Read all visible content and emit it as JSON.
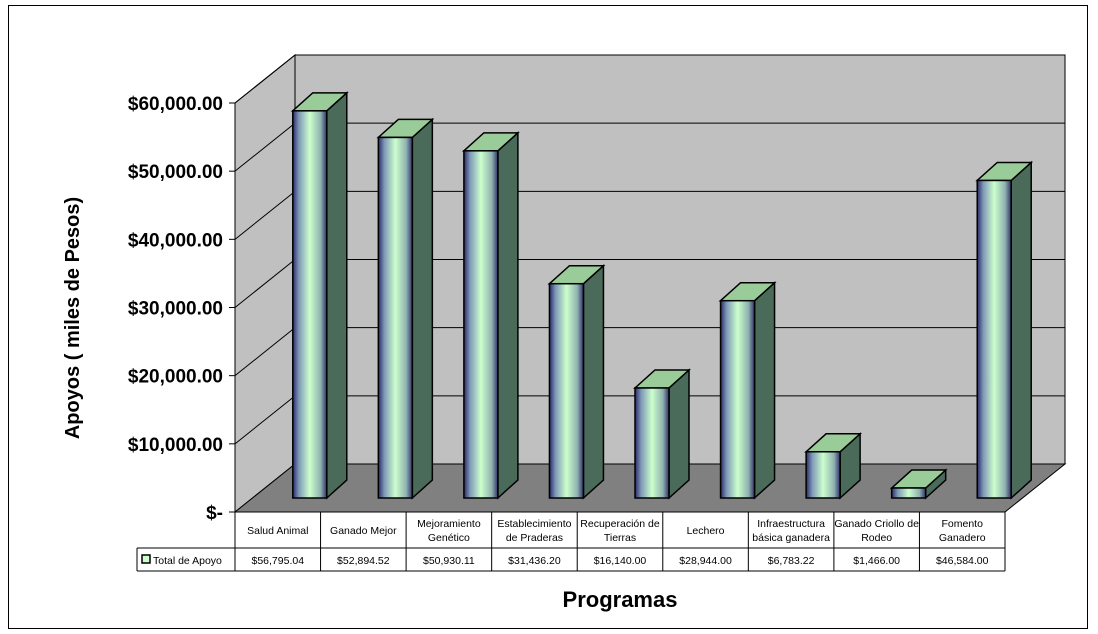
{
  "chart_data": {
    "type": "bar",
    "ylabel": "Apoyos ( miles de Pesos)",
    "xlabel": "Programas",
    "ylim": [
      0,
      60000
    ],
    "y_ticks": [
      {
        "value": 0,
        "label": "$-"
      },
      {
        "value": 10000,
        "label": "$10,000.00"
      },
      {
        "value": 20000,
        "label": "$20,000.00"
      },
      {
        "value": 30000,
        "label": "$30,000.00"
      },
      {
        "value": 40000,
        "label": "$40,000.00"
      },
      {
        "value": 50000,
        "label": "$50,000.00"
      },
      {
        "value": 60000,
        "label": "$60,000.00"
      }
    ],
    "categories": [
      [
        "Salud Animal"
      ],
      [
        "Ganado Mejor"
      ],
      [
        "Mejoramiento",
        "Genético"
      ],
      [
        "Establecimiento",
        "de Praderas"
      ],
      [
        "Recuperación de",
        "Tierras"
      ],
      [
        "Lechero"
      ],
      [
        "Infraestructura",
        "básica ganadera"
      ],
      [
        "Ganado Criollo de",
        "Rodeo"
      ],
      [
        "Fomento",
        "Ganadero"
      ]
    ],
    "series": [
      {
        "name": "Total de Apoyo",
        "values": [
          56795.04,
          52894.52,
          50930.11,
          31436.2,
          16140.0,
          28944.0,
          6783.22,
          1466.0,
          46584.0
        ],
        "labels": [
          "$56,795.04",
          "$52,894.52",
          "$50,930.11",
          "$31,436.20",
          "$16,140.00",
          "$28,944.00",
          "$6,783.22",
          "$1,466.00",
          "$46,584.00"
        ]
      }
    ],
    "grid": true,
    "three_d": true,
    "legend_placement": "data-table-left",
    "colors": {
      "back_wall": "#c0c0c0",
      "floor": "#808080",
      "bar_front_edge": "#2a2a66",
      "bar_front_mid": "#ccffcc",
      "bar_top": "#99cc99",
      "bar_side": "#4a6a5a"
    }
  }
}
